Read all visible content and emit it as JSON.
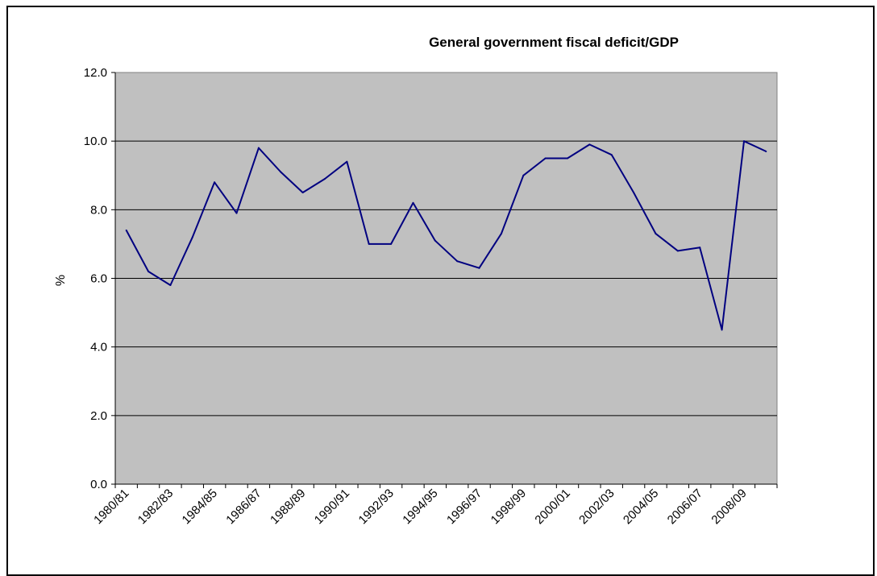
{
  "chart_data": {
    "type": "line",
    "title": "General government fiscal deficit/GDP",
    "xlabel": "",
    "ylabel": "%",
    "ylim": [
      0,
      12
    ],
    "ytick_labels": [
      "0.0",
      "2.0",
      "4.0",
      "6.0",
      "8.0",
      "10.0",
      "12.0"
    ],
    "grid": "horizontal",
    "plot_background": "#c0c0c0",
    "line_color": "#000080",
    "x": [
      "1980/81",
      "1981/82",
      "1982/83",
      "1983/84",
      "1984/85",
      "1985/86",
      "1986/87",
      "1987/88",
      "1988/89",
      "1989/90",
      "1990/91",
      "1991/92",
      "1992/93",
      "1993/94",
      "1994/95",
      "1995/96",
      "1996/97",
      "1997/98",
      "1998/99",
      "1999/00",
      "2000/01",
      "2001/02",
      "2002/03",
      "2003/04",
      "2004/05",
      "2005/06",
      "2006/07",
      "2007/08",
      "2008/09",
      "2009/10"
    ],
    "xtick_labels": [
      "1980/81",
      "",
      "1982/83",
      "",
      "1984/85",
      "",
      "1986/87",
      "",
      "1988/89",
      "",
      "1990/91",
      "",
      "1992/93",
      "",
      "1994/95",
      "",
      "1996/97",
      "",
      "1998/99",
      "",
      "2000/01",
      "",
      "2002/03",
      "",
      "2004/05",
      "",
      "2006/07",
      "",
      "2008/09",
      ""
    ],
    "series": [
      {
        "values": [
          7.4,
          6.2,
          5.8,
          7.2,
          8.8,
          7.9,
          9.8,
          9.1,
          8.5,
          8.9,
          9.4,
          7.0,
          7.0,
          8.2,
          7.1,
          6.5,
          6.3,
          7.3,
          9.0,
          9.5,
          9.5,
          9.9,
          9.6,
          8.5,
          7.3,
          6.8,
          6.9,
          4.5,
          10.0,
          9.7
        ]
      }
    ]
  }
}
